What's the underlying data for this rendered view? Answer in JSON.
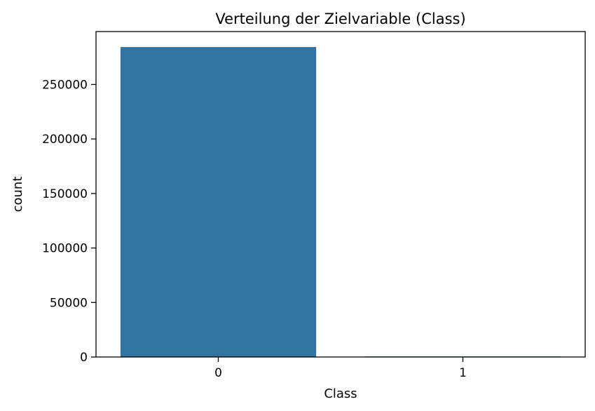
{
  "chart_data": {
    "type": "bar",
    "title": "Verteilung der Zielvariable (Class)",
    "xlabel": "Class",
    "ylabel": "count",
    "categories": [
      "0",
      "1"
    ],
    "values": [
      284315,
      492
    ],
    "ylim": [
      0,
      298530
    ],
    "yticks": [
      0,
      50000,
      100000,
      150000,
      200000,
      250000
    ],
    "grid": false,
    "legend": "none",
    "bar_color": "#3274a1"
  }
}
